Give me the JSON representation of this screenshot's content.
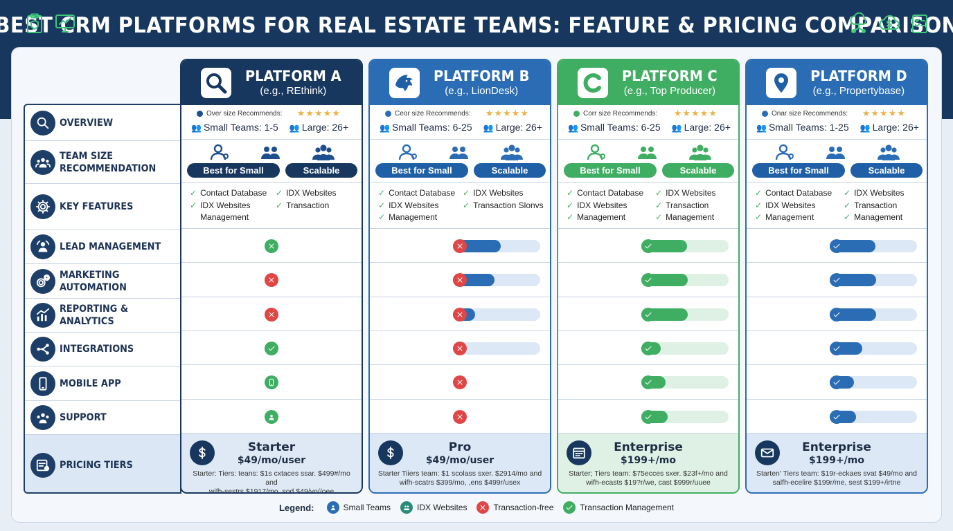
{
  "title": "BEST CRM PLATFORMS FOR REAL ESTATE TEAMS: FEATURE & PRICING COMPARISON",
  "header_icons_left": [
    "clipboard-shield-icon",
    "monitor-chart-icon"
  ],
  "header_icons_right": [
    "cloud-network-icon",
    "cloud-dollar-icon",
    "checklist-icon"
  ],
  "rows": [
    {
      "id": "overview",
      "label_lines": [
        "OVERVIEW"
      ],
      "icon": "search-icon"
    },
    {
      "id": "team-size",
      "label_lines": [
        "TEAM SIZE",
        "RECOMMENDATION"
      ],
      "icon": "group-icon"
    },
    {
      "id": "key-features",
      "label_lines": [
        "KEY FEATURES"
      ],
      "icon": "gear-icon"
    },
    {
      "id": "lead-management",
      "label_lines": [
        "LEAD MANAGEMENT"
      ],
      "icon": "lead-user-icon"
    },
    {
      "id": "marketing-automation",
      "label_lines": [
        "MARKETING",
        "AUTOMATION"
      ],
      "icon": "gears-icon"
    },
    {
      "id": "reporting",
      "label_lines": [
        "REPORTING &",
        "ANALYTICS"
      ],
      "icon": "bar-chart-icon"
    },
    {
      "id": "integrations",
      "label_lines": [
        "INTEGRATIONS"
      ],
      "icon": "network-icon"
    },
    {
      "id": "mobile-app",
      "label_lines": [
        "MOBILE APP"
      ],
      "icon": "phone-icon"
    },
    {
      "id": "support",
      "label_lines": [
        "SUPPORT"
      ],
      "icon": "support-group-icon"
    },
    {
      "id": "pricing",
      "label_lines": [
        "PRICING TIERS"
      ],
      "icon": "invoice-icon"
    }
  ],
  "platforms": [
    {
      "name": "PLATFORM A",
      "subtitle": "(e.g., REthink)",
      "logo": "magnifier-logo-icon",
      "head_color": "#17375e",
      "accent": "#1d4f8f",
      "light": "#dfe9f5",
      "overview": {
        "recommend": "Over size Recommends:",
        "stars": "★★★★★",
        "small": "Small Teams: 1-5",
        "large": "Large: 26+"
      },
      "team_size": {
        "pill_small": "Best for Small",
        "pill_scalable": "Scalable"
      },
      "features_left": [
        "Contact Database",
        "IDX Websites",
        "Management"
      ],
      "features_right": [
        "IDX Websites",
        "Transaction"
      ],
      "status": [
        {
          "kind": "icon",
          "icon": "x-icon",
          "color": "#3fae62"
        },
        {
          "kind": "icon",
          "icon": "x-icon",
          "color": "#e04646"
        },
        {
          "kind": "icon",
          "icon": "x-icon",
          "color": "#e04646"
        },
        {
          "kind": "icon",
          "icon": "check-icon",
          "color": "#3fae62"
        },
        {
          "kind": "icon",
          "icon": "phone-icon",
          "color": "#3fae62"
        },
        {
          "kind": "icon",
          "icon": "support-icon",
          "color": "#3fae62"
        }
      ],
      "pricing": {
        "icon": "dollar-icon",
        "tier": "Starter",
        "price": "$49/mo/user",
        "note_1": "Starter: Tiers: teans: $1s cxtaces ssar. $499#/mo and",
        "note_2": "wifh-sestrs $1917/mo, sod $49/vo//oee"
      }
    },
    {
      "name": "PLATFORM B",
      "subtitle": "(e.g., LionDesk)",
      "logo": "lion-logo-icon",
      "head_color": "#2a6db5",
      "accent": "#2a6db5",
      "light": "#dce8f6",
      "overview": {
        "recommend": "Ceor size Recommends:",
        "stars": "★★★★★",
        "small": "Small Teams: 6-25",
        "large": "Large: 26+"
      },
      "team_size": {
        "pill_small": "Best for Small",
        "pill_scalable": "Scalable"
      },
      "features_left": [
        "Contact Database",
        "IDX Websites",
        "Management"
      ],
      "features_right": [
        "IDX Websites",
        "Transaction Slonvs"
      ],
      "status": [
        {
          "kind": "bar",
          "icon": "x-icon",
          "color": "#e04646",
          "fill": 0.55
        },
        {
          "kind": "bar",
          "icon": "x-icon",
          "color": "#e04646",
          "fill": 0.48
        },
        {
          "kind": "bar",
          "icon": "x-icon",
          "color": "#e04646",
          "fill": 0.25
        },
        {
          "kind": "bar",
          "icon": "x-icon",
          "color": "#e04646",
          "fill": 0.0
        },
        {
          "kind": "icon",
          "icon": "x-icon",
          "color": "#e04646"
        },
        {
          "kind": "icon",
          "icon": "x-icon",
          "color": "#e04646"
        }
      ],
      "pricing": {
        "icon": "dollar-icon",
        "tier": "Pro",
        "price": "$49/mo/user",
        "note_1": "Starter Tiiers team: $1 scolass sxer. $2914/mo and",
        "note_2": "wifh-scatrs $399/mo, ,ens $499r/usex"
      }
    },
    {
      "name": "PLATFORM C",
      "subtitle": "(e.g., Top Producer)",
      "logo": "letter-c-logo-icon",
      "head_color": "#3fae62",
      "accent": "#3fae62",
      "light": "#dff1e5",
      "overview": {
        "recommend": "Corr size Recommends:",
        "stars": "★★★★★",
        "small": "Small Teams: 6-25",
        "large": "Large: 26+"
      },
      "team_size": {
        "pill_small": "Best for Small",
        "pill_scalable": "Scalable"
      },
      "features_left": [
        "Contact Database",
        "IDX Websites",
        "Management"
      ],
      "features_right": [
        "IDX Websites",
        "Transaction",
        "Management"
      ],
      "status": [
        {
          "kind": "bar",
          "icon": "check-icon",
          "color": "#3fae62",
          "fill": 0.52
        },
        {
          "kind": "bar",
          "icon": "check-icon",
          "color": "#3fae62",
          "fill": 0.53
        },
        {
          "kind": "bar",
          "icon": "check-icon",
          "color": "#3fae62",
          "fill": 0.53
        },
        {
          "kind": "bar",
          "icon": "check-icon",
          "color": "#3fae62",
          "fill": 0.22
        },
        {
          "kind": "bar",
          "icon": "check-icon",
          "color": "#3fae62",
          "fill": 0.28
        },
        {
          "kind": "bar",
          "icon": "check-icon",
          "color": "#3fae62",
          "fill": 0.3
        }
      ],
      "pricing": {
        "icon": "calendar-icon",
        "tier": "Enterprise",
        "price": "$199+/mo",
        "note_1": "Starter; Tiers team: $75ecces sxer. $23f+/mo and",
        "note_2": "wifh-ecasts $19?r/we, cast $999r/uuee"
      }
    },
    {
      "name": "PLATFORM D",
      "subtitle": "(e.g., Propertybase)",
      "logo": "pin-logo-icon",
      "head_color": "#2a6db5",
      "accent": "#2a6db5",
      "light": "#dce8f6",
      "overview": {
        "recommend": "Onar size Recommends:",
        "stars": "★★★★★",
        "small": "Small Teams: 1-25",
        "large": "Large: 26+"
      },
      "team_size": {
        "pill_small": "Best for Small",
        "pill_scalable": "Scalable"
      },
      "features_left": [
        "Contact Database",
        "IDX Websites",
        "Management"
      ],
      "features_right": [
        "IDX Websites",
        "Transaction",
        "Management"
      ],
      "status": [
        {
          "kind": "bar",
          "icon": "check-icon",
          "color": "#2a6db5",
          "fill": 0.52
        },
        {
          "kind": "bar",
          "icon": "check-icon",
          "color": "#2a6db5",
          "fill": 0.53
        },
        {
          "kind": "bar",
          "icon": "check-icon",
          "color": "#2a6db5",
          "fill": 0.53
        },
        {
          "kind": "bar",
          "icon": "check-icon",
          "color": "#2a6db5",
          "fill": 0.37
        },
        {
          "kind": "bar",
          "icon": "check-icon",
          "color": "#2a6db5",
          "fill": 0.28
        },
        {
          "kind": "bar",
          "icon": "check-icon",
          "color": "#2a6db5",
          "fill": 0.3
        }
      ],
      "pricing": {
        "icon": "envelope-icon",
        "tier": "Enterprise",
        "price": "$199+/mo",
        "note_1": "Starten' Tiers team: $19r-eckaes svat $49/mo and",
        "note_2": "salfh-ecelire $199r/me, sest $199+/irtne"
      }
    }
  ],
  "legend": {
    "title": "Legend:",
    "items": [
      {
        "label": "Small Teams",
        "icon": "small-teams-icon",
        "color": "#2a6db5"
      },
      {
        "label": "IDX Websites",
        "icon": "idx-websites-icon",
        "color": "#2a8a7a"
      },
      {
        "label": "Transaction-free",
        "icon": "x-icon",
        "color": "#e04646"
      },
      {
        "label": "Transaction Management",
        "icon": "check-icon",
        "color": "#3fae62"
      }
    ]
  }
}
